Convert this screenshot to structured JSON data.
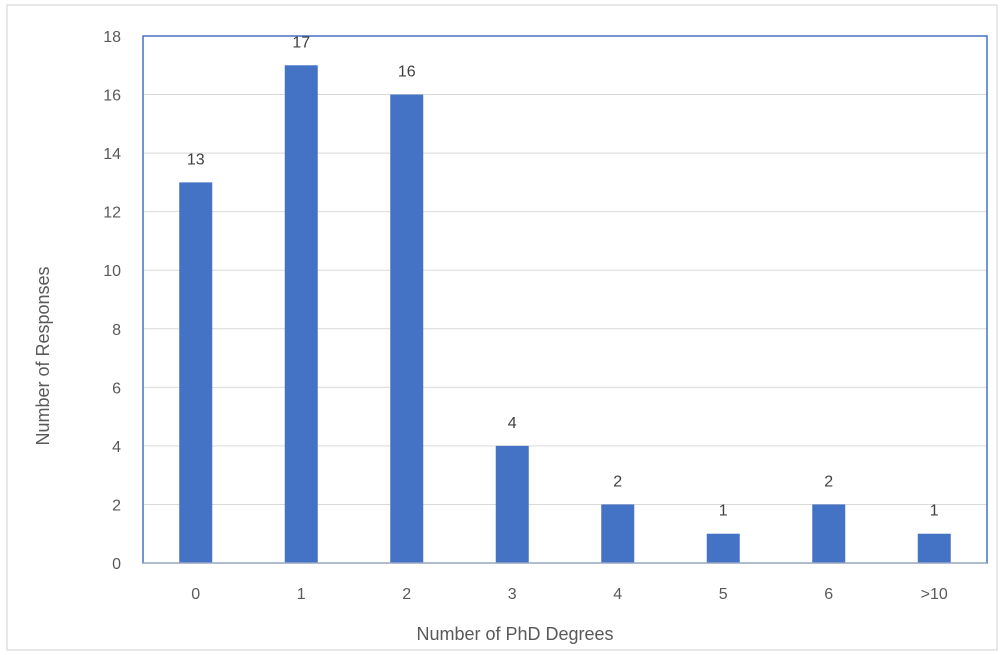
{
  "chart_data": {
    "type": "bar",
    "title": "",
    "xlabel": "Number of PhD Degrees",
    "ylabel": "Number of Responses",
    "categories": [
      "0",
      "1",
      "2",
      "3",
      "4",
      "5",
      "6",
      ">10"
    ],
    "values": [
      13,
      17,
      16,
      4,
      2,
      1,
      2,
      1
    ],
    "data_labels": [
      "13",
      "17",
      "16",
      "4",
      "2",
      "1",
      "2",
      "1"
    ],
    "ylim": [
      0,
      18
    ],
    "yticks": [
      "0",
      "2",
      "4",
      "6",
      "8",
      "10",
      "12",
      "14",
      "16",
      "18"
    ],
    "grid": true,
    "legend": "none",
    "bar_color": "#4472c4",
    "border_color": "#4472c4"
  }
}
